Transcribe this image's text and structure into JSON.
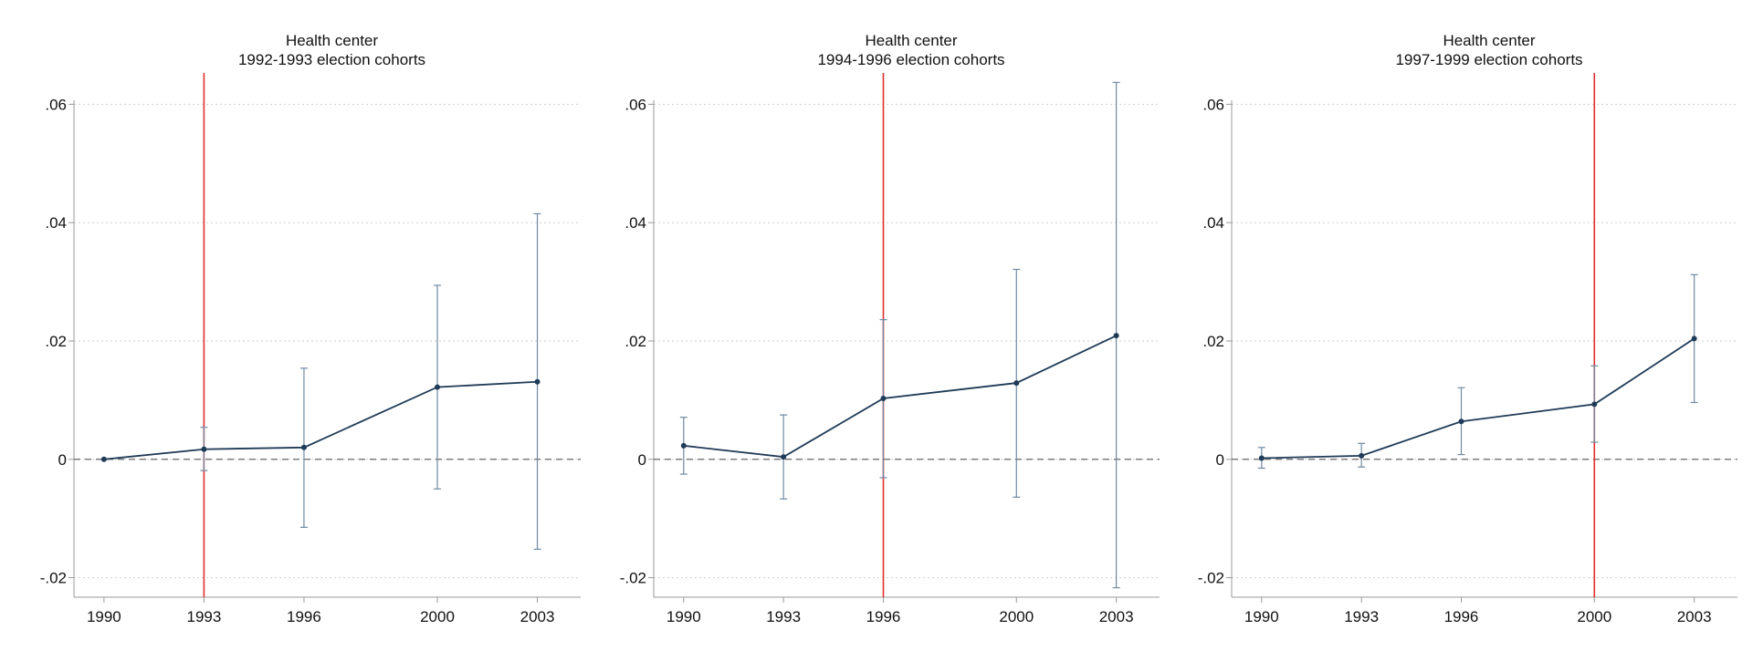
{
  "chart_data": [
    {
      "type": "line",
      "title": "Health center",
      "subtitle": "1992-1993 election cohorts",
      "xlabel": "",
      "ylabel": "",
      "categories": [
        "1990",
        "1993",
        "1996",
        "2000",
        "2003"
      ],
      "xlim": [
        1989.1,
        2004.3
      ],
      "ylim": [
        -0.0233,
        0.0653
      ],
      "yticks": [
        -0.02,
        0,
        0.02,
        0.04,
        0.06
      ],
      "ytick_labels": [
        "-.02",
        "0",
        ".02",
        ".04",
        ".06"
      ],
      "event_line": 1993,
      "reference_line": 0,
      "grid": true,
      "series": [
        {
          "x": [
            1990,
            1993,
            1996,
            2000,
            2003
          ],
          "values": [
            0.0,
            0.0017,
            0.002,
            0.0122,
            0.0131
          ],
          "ci_low": [
            0.0,
            -0.0019,
            -0.0115,
            -0.005,
            -0.0152
          ],
          "ci_high": [
            0.0,
            0.0054,
            0.0154,
            0.0294,
            0.0415
          ]
        }
      ]
    },
    {
      "type": "line",
      "title": "Health center",
      "subtitle": "1994-1996 election cohorts",
      "xlabel": "",
      "ylabel": "",
      "categories": [
        "1990",
        "1993",
        "1996",
        "2000",
        "2003"
      ],
      "xlim": [
        1989.1,
        2004.3
      ],
      "ylim": [
        -0.0233,
        0.0653
      ],
      "yticks": [
        -0.02,
        0,
        0.02,
        0.04,
        0.06
      ],
      "ytick_labels": [
        "-.02",
        "0",
        ".02",
        ".04",
        ".06"
      ],
      "event_line": 1996,
      "reference_line": 0,
      "grid": true,
      "series": [
        {
          "x": [
            1990,
            1993,
            1996,
            2000,
            2003
          ],
          "values": [
            0.0023,
            0.0004,
            0.0103,
            0.0129,
            0.0209
          ],
          "ci_low": [
            -0.0025,
            -0.0067,
            -0.0031,
            -0.0064,
            -0.0217
          ],
          "ci_high": [
            0.0071,
            0.0075,
            0.0236,
            0.0321,
            0.0637
          ]
        }
      ]
    },
    {
      "type": "line",
      "title": "Health center",
      "subtitle": "1997-1999 election cohorts",
      "xlabel": "",
      "ylabel": "",
      "categories": [
        "1990",
        "1993",
        "1996",
        "2000",
        "2003"
      ],
      "xlim": [
        1989.1,
        2004.3
      ],
      "ylim": [
        -0.0233,
        0.0653
      ],
      "yticks": [
        -0.02,
        0,
        0.02,
        0.04,
        0.06
      ],
      "ytick_labels": [
        "-.02",
        "0",
        ".02",
        ".04",
        ".06"
      ],
      "event_line": 2000,
      "reference_line": 0,
      "grid": true,
      "series": [
        {
          "x": [
            1990,
            1993,
            1996,
            2000,
            2003
          ],
          "values": [
            0.0002,
            0.0006,
            0.0064,
            0.0093,
            0.0204
          ],
          "ci_low": [
            -0.0015,
            -0.0013,
            0.0008,
            0.0029,
            0.0096
          ],
          "ci_high": [
            0.002,
            0.0027,
            0.0121,
            0.0158,
            0.0312
          ]
        }
      ]
    }
  ],
  "colors": {
    "series": "#1f3b57",
    "errorbar": "#6f8aa3",
    "event_line": "#e03030",
    "reference_line": "#666666",
    "grid": "#cfcfcf",
    "axis": "#9a9a9a"
  }
}
